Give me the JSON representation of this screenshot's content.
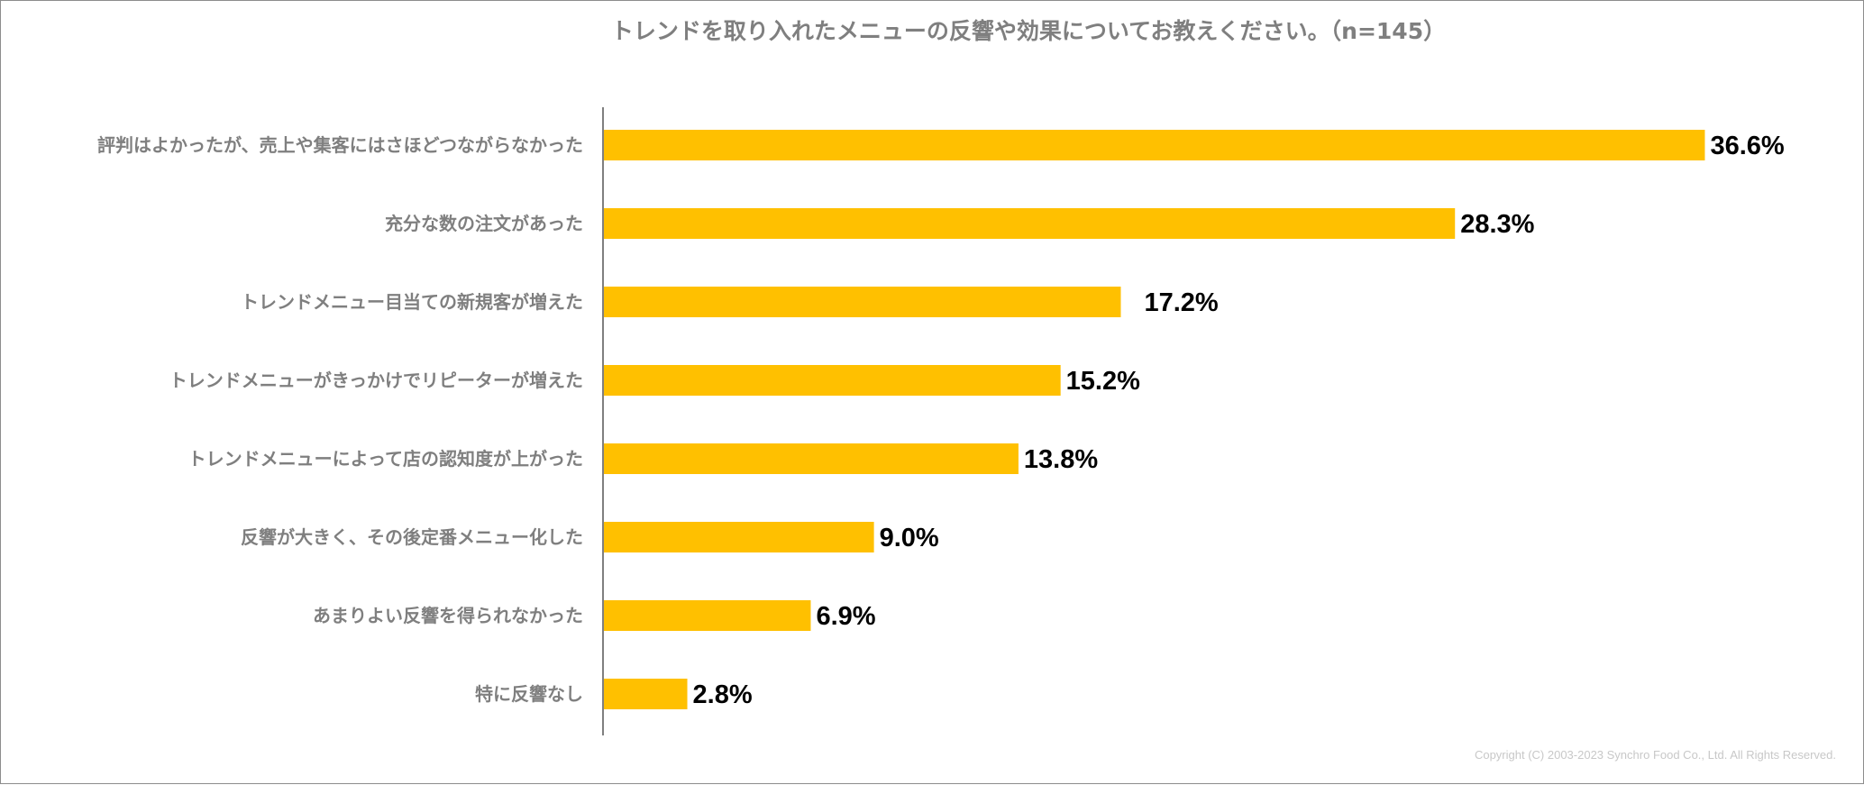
{
  "chart_data": {
    "type": "bar",
    "orientation": "horizontal",
    "title": "トレンドを取り入れたメニューの反響や効果についてお教えください。（n=145）",
    "categories": [
      "評判はよかったが、売上や集客にはさほどつながらなかった",
      "充分な数の注文があった",
      "トレンドメニュー目当ての新規客が増えた",
      "トレンドメニューがきっかけでリピーターが増えた",
      "トレンドメニューによって店の認知度が上がった",
      "反響が大きく、その後定番メニュー化した",
      "あまりよい反響を得られなかった",
      "特に反響なし"
    ],
    "values": [
      36.6,
      28.3,
      17.2,
      15.2,
      13.8,
      9.0,
      6.9,
      2.8
    ],
    "value_labels": [
      "36.6%",
      "28.3%",
      "17.2%",
      "15.2%",
      "13.8%",
      "9.0%",
      "6.9%",
      "2.8%"
    ],
    "unit": "%",
    "xlim": [
      0,
      40
    ],
    "bar_color": "#FFC000",
    "grid": false,
    "legend": "none"
  },
  "footer": {
    "copyright": "Copyright (C) 2003-2023 Synchro Food Co., Ltd. All Rights Reserved."
  }
}
